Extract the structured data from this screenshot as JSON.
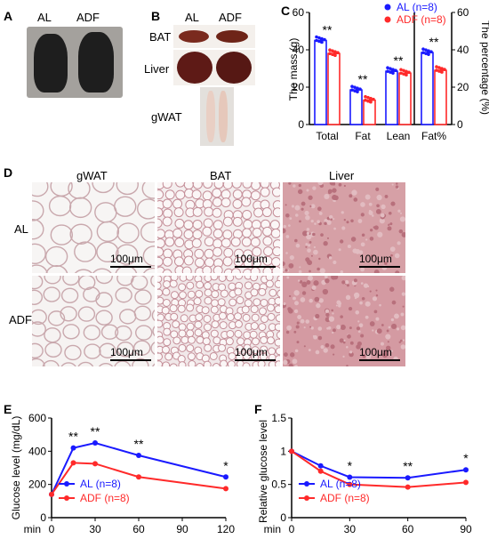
{
  "panels": {
    "A": "A",
    "B": "B",
    "C": "C",
    "D": "D",
    "E": "E",
    "F": "F"
  },
  "panel_a": {
    "labels": [
      "AL",
      "ADF"
    ]
  },
  "panel_b": {
    "columns": [
      "AL",
      "ADF"
    ],
    "rows": [
      "BAT",
      "Liver",
      "gWAT"
    ]
  },
  "panel_d": {
    "columns": [
      "gWAT",
      "BAT",
      "Liver"
    ],
    "rows": [
      "AL",
      "ADF"
    ],
    "scale": "100μm"
  },
  "colors": {
    "AL": "#1a1aff",
    "ADF": "#ff2a2a"
  },
  "chart_data": [
    {
      "id": "C",
      "type": "bar",
      "categories": [
        "Total",
        "Fat",
        "Lean",
        "Fat%"
      ],
      "series": [
        {
          "name": "AL (n=8)",
          "values": [
            45,
            18.5,
            28.5,
            38.5
          ]
        },
        {
          "name": "ADF (n=8)",
          "values": [
            38,
            13,
            27.5,
            29
          ]
        }
      ],
      "ylabel": "The mass (g)",
      "ylim": [
        0,
        60
      ],
      "yticks": [
        0,
        20,
        40,
        60
      ],
      "y2label": "The percentage (%)",
      "y2lim": [
        0,
        60
      ],
      "y2ticks": [
        0,
        20,
        40,
        60
      ],
      "significance": [
        "**",
        "**",
        "**",
        "**"
      ],
      "legend": "top-right"
    },
    {
      "id": "E",
      "type": "line",
      "x": [
        0,
        15,
        30,
        60,
        120
      ],
      "xlabel": "min",
      "xticks": [
        0,
        30,
        60,
        90,
        120
      ],
      "series": [
        {
          "name": "AL (n=8)",
          "values": [
            140,
            420,
            450,
            375,
            245
          ]
        },
        {
          "name": "ADF (n=8)",
          "values": [
            140,
            330,
            325,
            245,
            175
          ]
        }
      ],
      "ylabel": "Glucose level (mg/dL)",
      "ylim": [
        0,
        600
      ],
      "yticks": [
        0,
        200,
        400,
        600
      ],
      "significance": [
        {
          "x": 15,
          "mark": "**"
        },
        {
          "x": 30,
          "mark": "**"
        },
        {
          "x": 60,
          "mark": "**"
        },
        {
          "x": 120,
          "mark": "*"
        }
      ],
      "legend": "bottom-left"
    },
    {
      "id": "F",
      "type": "line",
      "x": [
        0,
        15,
        30,
        60,
        90
      ],
      "xlabel": "min",
      "xticks": [
        0,
        30,
        60,
        90
      ],
      "series": [
        {
          "name": "AL (n=8)",
          "values": [
            1.0,
            0.78,
            0.61,
            0.6,
            0.72
          ]
        },
        {
          "name": "ADF (n=8)",
          "values": [
            1.0,
            0.7,
            0.5,
            0.46,
            0.53
          ]
        }
      ],
      "ylabel": "Relative glucose level",
      "ylim": [
        0,
        1.5
      ],
      "yticks": [
        0,
        0.5,
        1,
        1.5
      ],
      "significance": [
        {
          "x": 30,
          "mark": "*"
        },
        {
          "x": 60,
          "mark": "**"
        },
        {
          "x": 90,
          "mark": "*"
        }
      ],
      "legend": "bottom-left"
    }
  ]
}
